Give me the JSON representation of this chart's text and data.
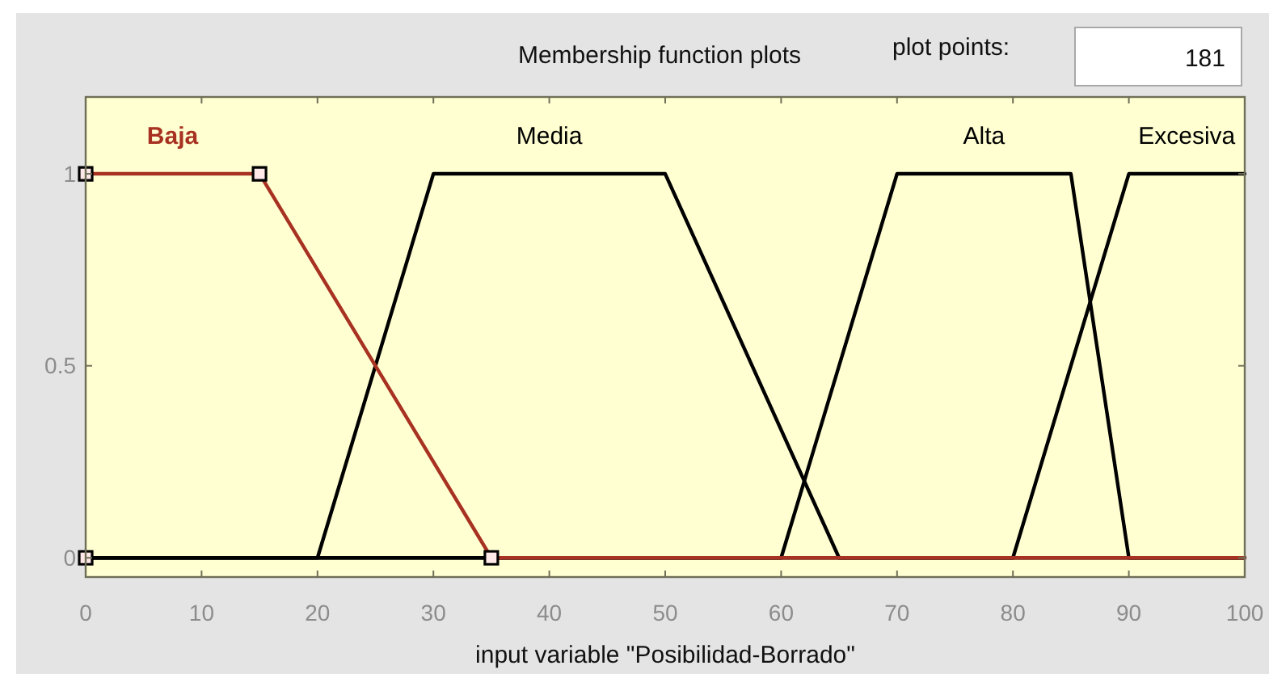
{
  "chart_data": {
    "type": "line",
    "title": "Membership function plots",
    "xlabel": "input variable \"Posibilidad-Borrado\"",
    "xlim": [
      0,
      100
    ],
    "xticks": [
      0,
      10,
      20,
      30,
      40,
      50,
      60,
      70,
      80,
      90,
      100
    ],
    "ylim": [
      -0.05,
      1.2
    ],
    "yticks": [
      0,
      0.5,
      1
    ],
    "series": [
      {
        "name": "Baja",
        "color": "#a83222",
        "x": [
          0,
          15,
          35,
          100
        ],
        "values": [
          1,
          1,
          0,
          0
        ]
      },
      {
        "name": "Media",
        "color": "#000000",
        "x": [
          0,
          20,
          30,
          50,
          65,
          100
        ],
        "values": [
          0,
          0,
          1,
          1,
          0,
          0
        ]
      },
      {
        "name": "Alta",
        "color": "#000000",
        "x": [
          0,
          60,
          70,
          85,
          90,
          100
        ],
        "values": [
          0,
          0,
          1,
          1,
          0,
          0
        ]
      },
      {
        "name": "Excesiva",
        "color": "#000000",
        "x": [
          0,
          80,
          90,
          100
        ],
        "values": [
          0,
          0,
          1,
          1
        ]
      },
      {
        "type": "scatter",
        "color": "#000000",
        "marker": "square",
        "x": [
          0,
          0,
          15,
          35
        ],
        "values": [
          0,
          1,
          1,
          0
        ]
      }
    ],
    "annotations": [
      "plot points:",
      "181"
    ]
  }
}
